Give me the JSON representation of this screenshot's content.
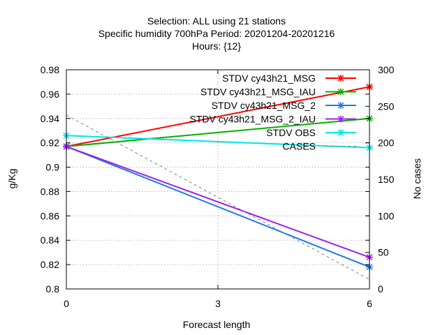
{
  "chart_data": {
    "type": "line",
    "title_lines": [
      "Selection: ALL using    21 stations",
      "Specific humidity 700hPa   Period: 20201204-20201216",
      "Hours: {12}"
    ],
    "xlabel": "Forecast length",
    "ylabel": "g/Kg",
    "y2label": "No cases",
    "x": [
      0,
      6
    ],
    "x_ticks": [
      0,
      3,
      6
    ],
    "x_tick_labels": [
      "0",
      "3",
      "6"
    ],
    "xlim": [
      0,
      6
    ],
    "ylim": [
      0.8,
      0.98
    ],
    "y_ticks": [
      0.8,
      0.82,
      0.84,
      0.86,
      0.88,
      0.9,
      0.92,
      0.94,
      0.96,
      0.98
    ],
    "y_tick_labels": [
      "0.8",
      "0.82",
      "0.84",
      "0.86",
      "0.88",
      "0.9",
      "0.92",
      "0.94",
      "0.96",
      "0.98"
    ],
    "y2lim": [
      0,
      300
    ],
    "y2_ticks": [
      0,
      50,
      100,
      150,
      200,
      250,
      300
    ],
    "y2_tick_labels": [
      "0",
      "50",
      "100",
      "150",
      "200",
      "250",
      "300"
    ],
    "legend_position": "top-right",
    "series": [
      {
        "name": "STDV cy43h21_MSG",
        "color": "#ff0000",
        "values": [
          0.917,
          0.966
        ],
        "axis": "left",
        "marker": "x"
      },
      {
        "name": "STDV cy43h21_MSG_IAU",
        "color": "#00b000",
        "values": [
          0.917,
          0.94
        ],
        "axis": "left",
        "marker": "x"
      },
      {
        "name": "STDV cy43h21_MSG_2",
        "color": "#1e78e6",
        "values": [
          0.917,
          0.818
        ],
        "axis": "left",
        "marker": "x"
      },
      {
        "name": "STDV cy43h21_MSG_2_IAU",
        "color": "#a020f0",
        "values": [
          0.917,
          0.826
        ],
        "axis": "left",
        "marker": "x"
      },
      {
        "name": "STDV OBS",
        "color": "#00e5e5",
        "values": [
          0.926,
          0.916
        ],
        "axis": "left",
        "marker": "x"
      },
      {
        "name": "CASES",
        "color": "#808080",
        "values": [
          238,
          13
        ],
        "axis": "right",
        "marker": "none",
        "dashed": true
      }
    ]
  }
}
